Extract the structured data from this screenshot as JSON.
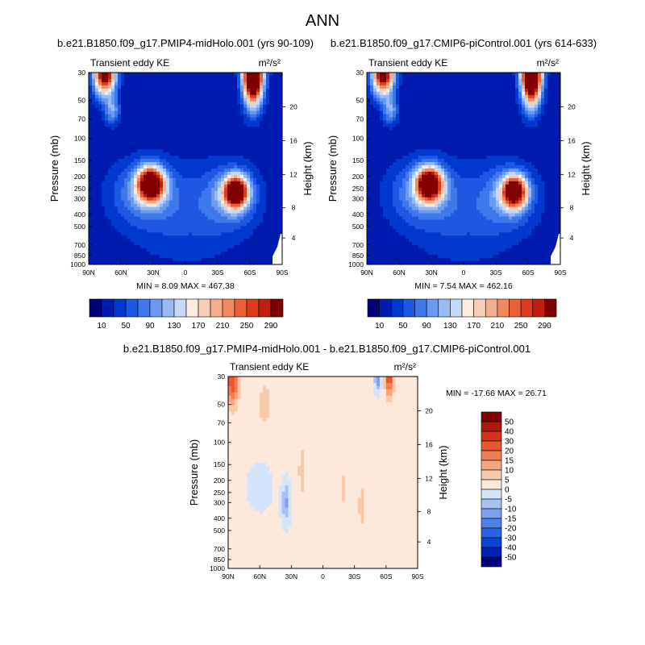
{
  "figure": {
    "title": "ANN"
  },
  "palettes": {
    "abs": [
      "#00007a",
      "#001bb0",
      "#0039cf",
      "#1d58e2",
      "#3e79ec",
      "#6b9af1",
      "#97bcf5",
      "#c4d9f8",
      "#fcebe1",
      "#f8cdb6",
      "#f5ad8b",
      "#f1885e",
      "#eb5f38",
      "#dd3a1e",
      "#c01e10",
      "#800000"
    ],
    "diff": [
      "#00007a",
      "#0021b5",
      "#0a44d4",
      "#2a62e4",
      "#4d81ec",
      "#7aa1f1",
      "#a6c2f5",
      "#d3e4fb",
      "#fde8dc",
      "#f9c9ab",
      "#f5a67f",
      "#ef7e53",
      "#e8582f",
      "#d2341a",
      "#ad1a0c",
      "#800000"
    ]
  },
  "chart_data": [
    {
      "type": "heatmap",
      "panel_title": "b.e21.B1850.f09_g17.PMIP4-midHolo.001 (yrs 90-109)",
      "left_label": "Transient eddy KE",
      "units": "m²/s²",
      "stats": "MIN =   8.09  MAX = 467.38",
      "min": 8.09,
      "max": 467.38,
      "xlabel": "",
      "ylabel": "Pressure (mb)",
      "y2label": "Height (km)",
      "x_range": [
        90,
        -90
      ],
      "y_range": [
        1000,
        30
      ],
      "y_scale": "log",
      "x_ticks": [
        "90N",
        "60N",
        "30N",
        "0",
        "30S",
        "60S",
        "90S"
      ],
      "x_tick_values": [
        90,
        60,
        30,
        0,
        -30,
        -60,
        -90
      ],
      "y_ticks": [
        "30",
        "50",
        "70",
        "100",
        "150",
        "200",
        "250",
        "300",
        "400",
        "500",
        "700",
        "850",
        "1000"
      ],
      "y_tick_values": [
        30,
        50,
        70,
        100,
        150,
        200,
        250,
        300,
        400,
        500,
        700,
        850,
        1000
      ],
      "y2_ticks": [
        "4",
        "8",
        "12",
        "16",
        "20"
      ],
      "y2_tick_pressures": [
        616,
        355,
        193,
        104,
        56
      ],
      "colorbar": {
        "levels": [
          10,
          30,
          50,
          70,
          90,
          110,
          130,
          150,
          170,
          190,
          210,
          230,
          250,
          270,
          290
        ],
        "label_list": [
          "10",
          "50",
          "90",
          "130",
          "170",
          "210",
          "250",
          "290"
        ]
      }
    },
    {
      "type": "heatmap",
      "panel_title": "b.e21.B1850.f09_g17.CMIP6-piControl.001 (yrs 614-633)",
      "left_label": "Transient eddy KE",
      "units": "m²/s²",
      "stats": "MIN =   7.54  MAX = 462.16",
      "min": 7.54,
      "max": 462.16,
      "xlabel": "",
      "ylabel": "Pressure (mb)",
      "y2label": "Height (km)",
      "x_range": [
        90,
        -90
      ],
      "y_range": [
        1000,
        30
      ],
      "y_scale": "log",
      "x_ticks": [
        "90N",
        "60N",
        "30N",
        "0",
        "30S",
        "60S",
        "90S"
      ],
      "x_tick_values": [
        90,
        60,
        30,
        0,
        -30,
        -60,
        -90
      ],
      "y_ticks": [
        "30",
        "50",
        "70",
        "100",
        "150",
        "200",
        "250",
        "300",
        "400",
        "500",
        "700",
        "850",
        "1000"
      ],
      "y_tick_values": [
        30,
        50,
        70,
        100,
        150,
        200,
        250,
        300,
        400,
        500,
        700,
        850,
        1000
      ],
      "y2_ticks": [
        "4",
        "8",
        "12",
        "16",
        "20"
      ],
      "y2_tick_pressures": [
        616,
        355,
        193,
        104,
        56
      ],
      "colorbar": {
        "levels": [
          10,
          30,
          50,
          70,
          90,
          110,
          130,
          150,
          170,
          190,
          210,
          230,
          250,
          270,
          290
        ],
        "label_list": [
          "10",
          "50",
          "90",
          "130",
          "170",
          "210",
          "250",
          "290"
        ]
      }
    },
    {
      "type": "heatmap",
      "panel_title": "b.e21.B1850.f09_g17.PMIP4-midHolo.001 - b.e21.B1850.f09_g17.CMIP6-piControl.001",
      "left_label": "Transient eddy KE",
      "units": "m²/s²",
      "stats": "MIN = -17.66  MAX =  26.71",
      "min": -17.66,
      "max": 26.71,
      "xlabel": "",
      "ylabel": "Pressure (mb)",
      "y2label": "Height (km)",
      "x_range": [
        90,
        -90
      ],
      "y_range": [
        1000,
        30
      ],
      "y_scale": "log",
      "x_ticks": [
        "90N",
        "60N",
        "30N",
        "0",
        "30S",
        "60S",
        "90S"
      ],
      "x_tick_values": [
        90,
        60,
        30,
        0,
        -30,
        -60,
        -90
      ],
      "y_ticks": [
        "30",
        "50",
        "70",
        "100",
        "150",
        "200",
        "250",
        "300",
        "400",
        "500",
        "700",
        "850",
        "1000"
      ],
      "y_tick_values": [
        30,
        50,
        70,
        100,
        150,
        200,
        250,
        300,
        400,
        500,
        700,
        850,
        1000
      ],
      "y2_ticks": [
        "4",
        "8",
        "12",
        "16",
        "20"
      ],
      "y2_tick_pressures": [
        616,
        355,
        193,
        104,
        56
      ],
      "colorbar": {
        "levels": [
          -50,
          -40,
          -30,
          -20,
          -15,
          -10,
          -5,
          0,
          5,
          10,
          15,
          20,
          30,
          40,
          50
        ],
        "label_list": [
          "50",
          "40",
          "30",
          "20",
          "15",
          "10",
          "5",
          "0",
          "-5",
          "-10",
          "-15",
          "-20",
          "-30",
          "-40",
          "-50"
        ]
      }
    }
  ]
}
